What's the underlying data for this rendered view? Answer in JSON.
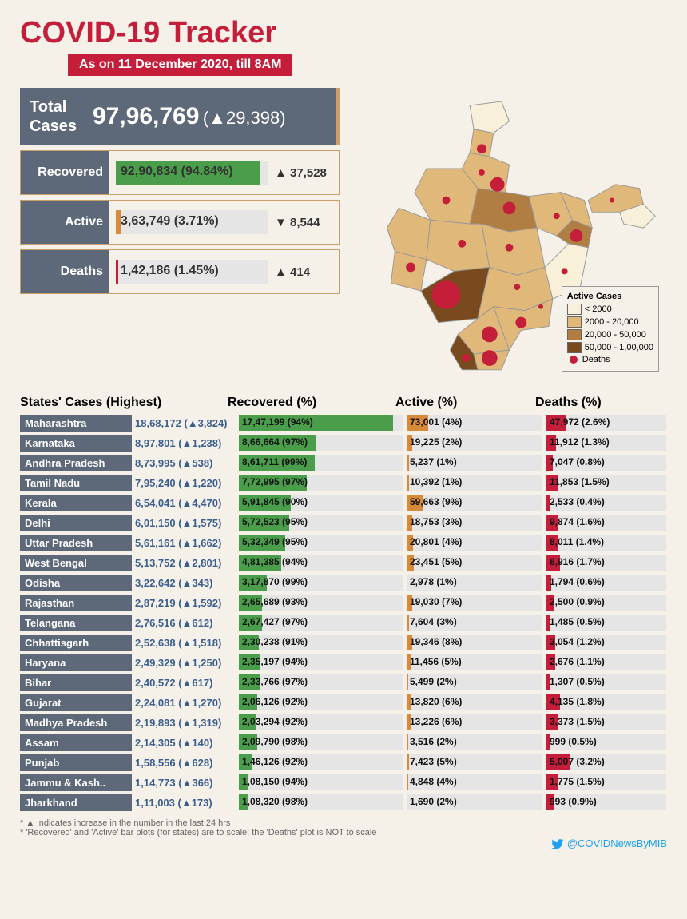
{
  "header": {
    "title": "COVID-19 Tracker",
    "date": "As on 11 December 2020, till 8AM"
  },
  "totals": {
    "label": "Total\nCases",
    "value": "97,96,769",
    "delta": "(▲29,398)"
  },
  "summary": [
    {
      "label": "Recovered",
      "value": "92,90,834 (94.84%)",
      "pct": 94.84,
      "delta": "▲ 37,528",
      "color": "#4a9d4a"
    },
    {
      "label": "Active",
      "value": "3,63,749 (3.71%)",
      "pct": 3.71,
      "delta": "▼ 8,544",
      "color": "#d68a3a"
    },
    {
      "label": "Deaths",
      "value": "1,42,186 (1.45%)",
      "pct": 1.45,
      "delta": "▲ 414",
      "color": "#c41e3a"
    }
  ],
  "columns": {
    "state": "States' Cases (Highest)",
    "rec": "Recovered (%)",
    "act": "Active (%)",
    "dth": "Deaths (%)"
  },
  "colors": {
    "rec": "#4a9d4a",
    "act": "#d68a3a",
    "dth": "#c41e3a",
    "row_bg": "#e5e5e5",
    "state_bg": "#5d6878",
    "cases_color": "#3a5f8f"
  },
  "max_cases": 1868172,
  "states": [
    {
      "name": "Maharashtra",
      "cases": "18,68,172",
      "cases_n": 1868172,
      "delta": "▲3,824",
      "rec": "17,47,199",
      "rec_p": 94,
      "act": "73,001",
      "act_p": 4,
      "dth": "47,972",
      "dth_p": 2.6,
      "dth_bar": 16
    },
    {
      "name": "Karnataka",
      "cases": "8,97,801",
      "cases_n": 897801,
      "delta": "▲1,238",
      "rec": "8,66,664",
      "rec_p": 97,
      "act": "19,225",
      "act_p": 2,
      "dth": "11,912",
      "dth_p": 1.3,
      "dth_bar": 8
    },
    {
      "name": "Andhra Pradesh",
      "cases": "8,73,995",
      "cases_n": 873995,
      "delta": "▲538",
      "rec": "8,61,711",
      "rec_p": 99,
      "act": "5,237",
      "act_p": 1,
      "dth": "7,047",
      "dth_p": 0.8,
      "dth_bar": 5
    },
    {
      "name": "Tamil Nadu",
      "cases": "7,95,240",
      "cases_n": 795240,
      "delta": "▲1,220",
      "rec": "7,72,995",
      "rec_p": 97,
      "act": "10,392",
      "act_p": 1,
      "dth": "11,853",
      "dth_p": 1.5,
      "dth_bar": 9
    },
    {
      "name": "Kerala",
      "cases": "6,54,041",
      "cases_n": 654041,
      "delta": "▲4,470",
      "rec": "5,91,845",
      "rec_p": 90,
      "act": "59,663",
      "act_p": 9,
      "dth": "2,533",
      "dth_p": 0.4,
      "dth_bar": 2.5
    },
    {
      "name": "Delhi",
      "cases": "6,01,150",
      "cases_n": 601150,
      "delta": "▲1,575",
      "rec": "5,72,523",
      "rec_p": 95,
      "act": "18,753",
      "act_p": 3,
      "dth": "9,874",
      "dth_p": 1.6,
      "dth_bar": 10
    },
    {
      "name": "Uttar Pradesh",
      "cases": "5,61,161",
      "cases_n": 561161,
      "delta": "▲1,662",
      "rec": "5,32,349",
      "rec_p": 95,
      "act": "20,801",
      "act_p": 4,
      "dth": "8,011",
      "dth_p": 1.4,
      "dth_bar": 9
    },
    {
      "name": "West Bengal",
      "cases": "5,13,752",
      "cases_n": 513752,
      "delta": "▲2,801",
      "rec": "4,81,385",
      "rec_p": 94,
      "act": "23,451",
      "act_p": 5,
      "dth": "8,916",
      "dth_p": 1.7,
      "dth_bar": 11
    },
    {
      "name": "Odisha",
      "cases": "3,22,642",
      "cases_n": 322642,
      "delta": "▲343",
      "rec": "3,17,870",
      "rec_p": 99,
      "act": "2,978",
      "act_p": 1,
      "dth": "1,794",
      "dth_p": 0.6,
      "dth_bar": 4
    },
    {
      "name": "Rajasthan",
      "cases": "2,87,219",
      "cases_n": 287219,
      "delta": "▲1,592",
      "rec": "2,65,689",
      "rec_p": 93,
      "act": "19,030",
      "act_p": 7,
      "dth": "2,500",
      "dth_p": 0.9,
      "dth_bar": 6
    },
    {
      "name": "Telangana",
      "cases": "2,76,516",
      "cases_n": 276516,
      "delta": "▲612",
      "rec": "2,67,427",
      "rec_p": 97,
      "act": "7,604",
      "act_p": 3,
      "dth": "1,485",
      "dth_p": 0.5,
      "dth_bar": 3
    },
    {
      "name": "Chhattisgarh",
      "cases": "2,52,638",
      "cases_n": 252638,
      "delta": "▲1,518",
      "rec": "2,30,238",
      "rec_p": 91,
      "act": "19,346",
      "act_p": 8,
      "dth": "3,054",
      "dth_p": 1.2,
      "dth_bar": 7.5
    },
    {
      "name": "Haryana",
      "cases": "2,49,329",
      "cases_n": 249329,
      "delta": "▲1,250",
      "rec": "2,35,197",
      "rec_p": 94,
      "act": "11,456",
      "act_p": 5,
      "dth": "2,676",
      "dth_p": 1.1,
      "dth_bar": 7
    },
    {
      "name": "Bihar",
      "cases": "2,40,572",
      "cases_n": 240572,
      "delta": "▲617",
      "rec": "2,33,766",
      "rec_p": 97,
      "act": "5,499",
      "act_p": 2,
      "dth": "1,307",
      "dth_p": 0.5,
      "dth_bar": 3
    },
    {
      "name": "Gujarat",
      "cases": "2,24,081",
      "cases_n": 224081,
      "delta": "▲1,270",
      "rec": "2,06,126",
      "rec_p": 92,
      "act": "13,820",
      "act_p": 6,
      "dth": "4,135",
      "dth_p": 1.8,
      "dth_bar": 11
    },
    {
      "name": "Madhya Pradesh",
      "cases": "2,19,893",
      "cases_n": 219893,
      "delta": "▲1,319",
      "rec": "2,03,294",
      "rec_p": 92,
      "act": "13,226",
      "act_p": 6,
      "dth": "3,373",
      "dth_p": 1.5,
      "dth_bar": 9
    },
    {
      "name": "Assam",
      "cases": "2,14,305",
      "cases_n": 214305,
      "delta": "▲140",
      "rec": "2,09,790",
      "rec_p": 98,
      "act": "3,516",
      "act_p": 2,
      "dth": "999",
      "dth_p": 0.5,
      "dth_bar": 3
    },
    {
      "name": "Punjab",
      "cases": "1,58,556",
      "cases_n": 158556,
      "delta": "▲628",
      "rec": "1,46,126",
      "rec_p": 92,
      "act": "7,423",
      "act_p": 5,
      "dth": "5,007",
      "dth_p": 3.2,
      "dth_bar": 20
    },
    {
      "name": "Jammu & Kash..",
      "cases": "1,14,773",
      "cases_n": 114773,
      "delta": "▲366",
      "rec": "1,08,150",
      "rec_p": 94,
      "act": "4,848",
      "act_p": 4,
      "dth": "1,775",
      "dth_p": 1.5,
      "dth_bar": 9
    },
    {
      "name": "Jharkhand",
      "cases": "1,11,003",
      "cases_n": 111003,
      "delta": "▲173",
      "rec": "1,08,320",
      "rec_p": 98,
      "act": "1,690",
      "act_p": 2,
      "dth": "993",
      "dth_p": 0.9,
      "dth_bar": 6
    }
  ],
  "legend": {
    "title": "Active Cases",
    "bands": [
      {
        "label": "< 2000",
        "color": "#f9f0d9"
      },
      {
        "label": "2000 - 20,000",
        "color": "#e0b87a"
      },
      {
        "label": "20,000 - 50,000",
        "color": "#b07d42"
      },
      {
        "label": "50,000 - 1,00,000",
        "color": "#7a4a1f"
      }
    ],
    "deaths": {
      "label": "Deaths",
      "color": "#c41e3a"
    }
  },
  "footnotes": [
    "* ▲ indicates increase in the number in the last 24 hrs",
    "* 'Recovered' and 'Active' bar plots (for states) are to scale; the 'Deaths' plot is NOT to scale"
  ],
  "twitter": "@COVIDNewsByMIB"
}
